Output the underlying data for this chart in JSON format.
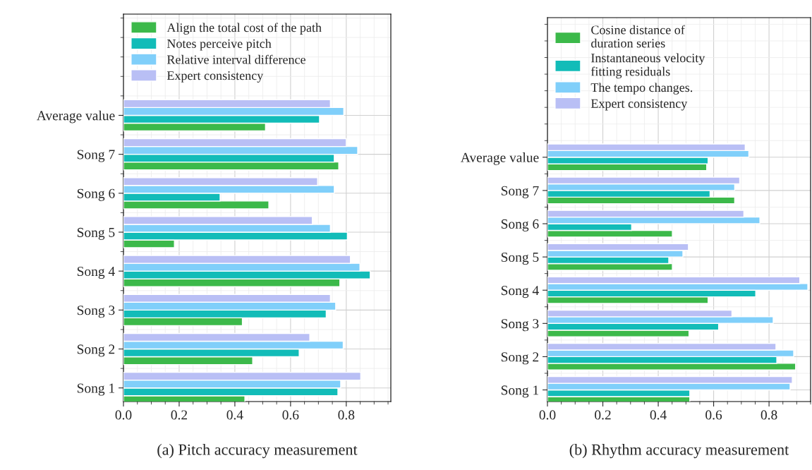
{
  "chart_data": [
    {
      "type": "bar",
      "orientation": "horizontal",
      "xlabel": "(a) Pitch accuracy measurement",
      "categories": [
        "Average value",
        "Song 7",
        "Song 6",
        "Song 5",
        "Song 4",
        "Song 3",
        "Song 2",
        "Song 1"
      ],
      "series": [
        {
          "name": "Align the total cost of the path",
          "color": "#3cb94a",
          "values": [
            0.51,
            0.773,
            0.522,
            0.183,
            0.777,
            0.427,
            0.464,
            0.436
          ]
        },
        {
          "name": "Notes perceive pitch",
          "color": "#12bcb8",
          "values": [
            0.704,
            0.757,
            0.347,
            0.804,
            0.886,
            0.728,
            0.631,
            0.77
          ]
        },
        {
          "name": "Relative interval difference",
          "color": "#80cffa",
          "values": [
            0.791,
            0.841,
            0.757,
            0.743,
            0.849,
            0.762,
            0.789,
            0.78
          ]
        },
        {
          "name": "Expert consistency",
          "color": "#b9bff5",
          "values": [
            0.743,
            0.8,
            0.697,
            0.678,
            0.815,
            0.743,
            0.669,
            0.852
          ]
        }
      ],
      "xlim": [
        0,
        0.96
      ],
      "xticks": [
        {
          "value": 0,
          "label": "0.0"
        },
        {
          "value": 0.2,
          "label": "0.2"
        },
        {
          "value": 0.4,
          "label": "0.4"
        },
        {
          "value": 0.6,
          "label": "0.6"
        },
        {
          "value": 0.8,
          "label": "0.8"
        }
      ],
      "grid": true,
      "legend": "top left"
    },
    {
      "type": "bar",
      "orientation": "horizontal",
      "xlabel": "(b) Rhythm accuracy measurement",
      "categories": [
        "Average value",
        "Song 7",
        "Song 6",
        "Song 5",
        "Song 4",
        "Song 3",
        "Song 2",
        "Song 1"
      ],
      "series": [
        {
          "name": "Cosine distance of\nduration series",
          "color": "#3cb94a",
          "values": [
            0.575,
            0.676,
            0.451,
            0.451,
            0.58,
            0.511,
            0.896,
            0.514
          ]
        },
        {
          "name": "Instantaneous velocity\nfitting residuals",
          "color": "#12bcb8",
          "values": [
            0.58,
            0.587,
            0.304,
            0.438,
            0.752,
            0.618,
            0.828,
            0.514
          ]
        },
        {
          "name": "The tempo changes.",
          "color": "#80cffa",
          "values": [
            0.727,
            0.676,
            0.767,
            0.489,
            0.94,
            0.815,
            0.889,
            0.876
          ]
        },
        {
          "name": "Expert consistency",
          "color": "#b9bff5",
          "values": [
            0.714,
            0.694,
            0.709,
            0.509,
            0.911,
            0.666,
            0.825,
            0.884
          ]
        }
      ],
      "xlim": [
        0,
        0.95
      ],
      "xticks": [
        {
          "value": 0,
          "label": "0.0"
        },
        {
          "value": 0.2,
          "label": "0.2"
        },
        {
          "value": 0.4,
          "label": "0.4"
        },
        {
          "value": 0.6,
          "label": "0.6"
        },
        {
          "value": 0.8,
          "label": "0.8"
        }
      ],
      "grid": true,
      "legend": "top left"
    }
  ]
}
